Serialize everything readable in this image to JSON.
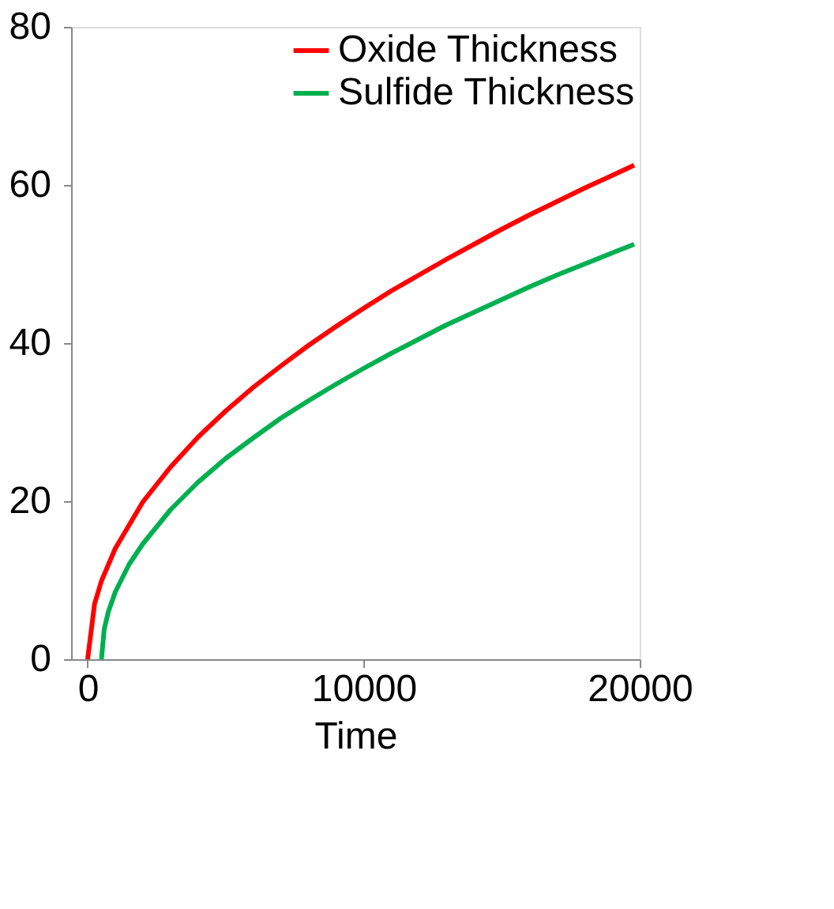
{
  "chart_data": {
    "type": "line",
    "xlabel": "Time",
    "xlim": [
      -600,
      20000
    ],
    "xticks": [
      0,
      10000,
      20000
    ],
    "ylim": [
      0,
      80
    ],
    "yticks": [
      0,
      20,
      40,
      60,
      80
    ],
    "grid": false,
    "legend": "top right",
    "marker": "none",
    "line_style": "solid",
    "series": [
      {
        "name": "Oxide Thickness",
        "color": "#ff0000",
        "x": [
          0,
          250,
          500,
          1000,
          2000,
          3000,
          4000,
          5000,
          6000,
          7000,
          8000,
          9000,
          10000,
          11000,
          12000,
          13000,
          14000,
          15000,
          16000,
          17000,
          18000,
          19000,
          19800
        ],
        "values": [
          0,
          7,
          9.9,
          14,
          19.9,
          24.3,
          28.1,
          31.4,
          34.4,
          37.1,
          39.7,
          42.1,
          44.4,
          46.6,
          48.6,
          50.6,
          52.5,
          54.4,
          56.2,
          57.9,
          59.6,
          61.2,
          62.5
        ]
      },
      {
        "name": "Sulfide Thickness",
        "color": "#00b050",
        "x": [
          500,
          600,
          750,
          1000,
          1500,
          2000,
          3000,
          4000,
          5000,
          6000,
          7000,
          8000,
          9000,
          10000,
          11000,
          12000,
          13000,
          14000,
          15000,
          16000,
          17000,
          18000,
          19000,
          19800
        ],
        "values": [
          0,
          3.8,
          6,
          8.5,
          12,
          14.6,
          18.9,
          22.4,
          25.4,
          28,
          30.5,
          32.7,
          34.8,
          36.8,
          38.7,
          40.5,
          42.3,
          43.9,
          45.5,
          47.1,
          48.6,
          50,
          51.4,
          52.5
        ]
      }
    ]
  }
}
